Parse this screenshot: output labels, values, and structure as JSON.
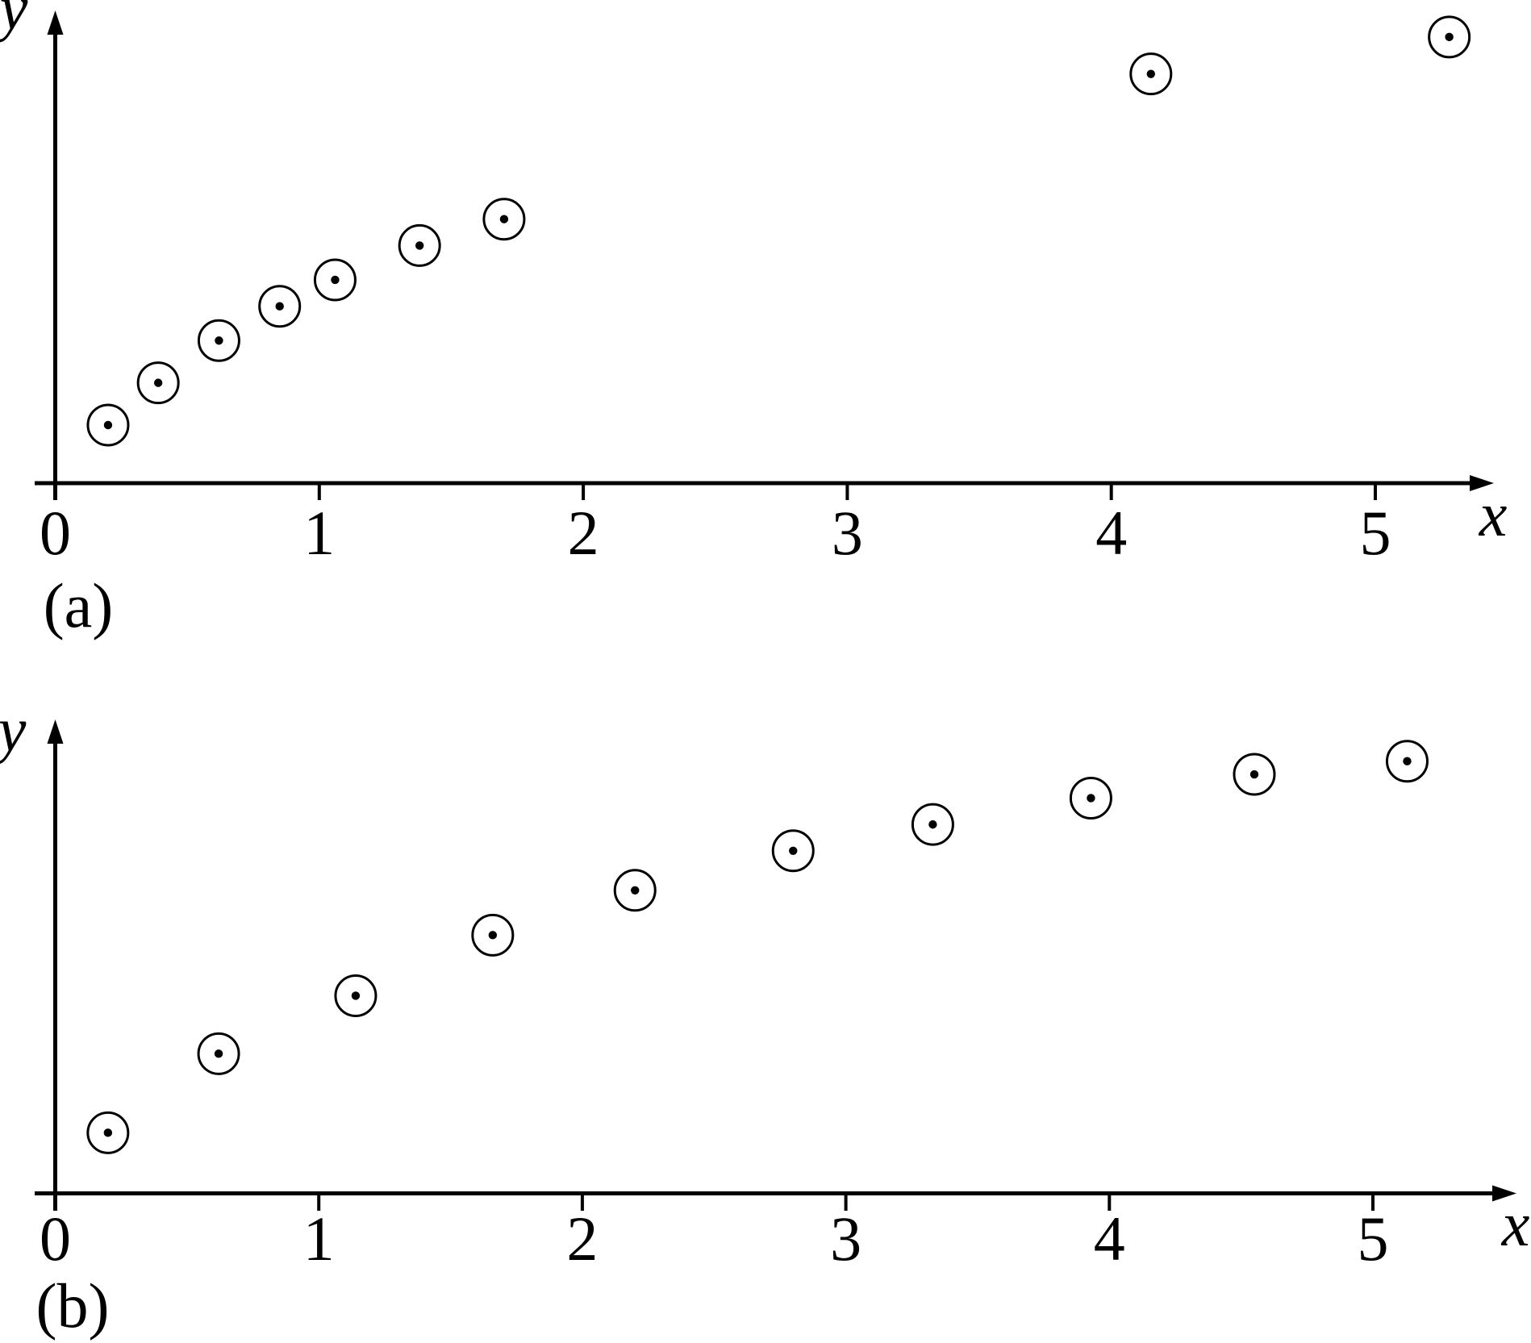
{
  "figure": {
    "background_color": "#ffffff",
    "ink_color": "#000000",
    "marker_style": "open-circle-with-center-dot"
  },
  "chart_data": [
    {
      "id": "a",
      "type": "scatter",
      "subplot_label": "(a)",
      "xlabel": "x",
      "ylabel": "y",
      "x_ticks": [
        0,
        1,
        2,
        3,
        4,
        5
      ],
      "xlim": [
        0,
        5.6
      ],
      "ylim": [
        0,
        1.8
      ],
      "grid": false,
      "legend": false,
      "points": [
        [
          0.2,
          0.22
        ],
        [
          0.39,
          0.38
        ],
        [
          0.62,
          0.54
        ],
        [
          0.85,
          0.67
        ],
        [
          1.06,
          0.77
        ],
        [
          1.38,
          0.9
        ],
        [
          1.7,
          1.0
        ],
        [
          4.15,
          1.55
        ],
        [
          5.28,
          1.69
        ]
      ]
    },
    {
      "id": "b",
      "type": "scatter",
      "subplot_label": "(b)",
      "xlabel": "x",
      "ylabel": "y",
      "x_ticks": [
        0,
        1,
        2,
        3,
        4,
        5
      ],
      "xlim": [
        0,
        5.6
      ],
      "ylim": [
        0,
        1.8
      ],
      "grid": false,
      "legend": false,
      "points": [
        [
          0.2,
          0.23
        ],
        [
          0.62,
          0.53
        ],
        [
          1.14,
          0.75
        ],
        [
          1.66,
          0.98
        ],
        [
          2.2,
          1.15
        ],
        [
          2.8,
          1.3
        ],
        [
          3.33,
          1.4
        ],
        [
          3.93,
          1.5
        ],
        [
          4.55,
          1.59
        ],
        [
          5.13,
          1.64
        ]
      ]
    }
  ]
}
